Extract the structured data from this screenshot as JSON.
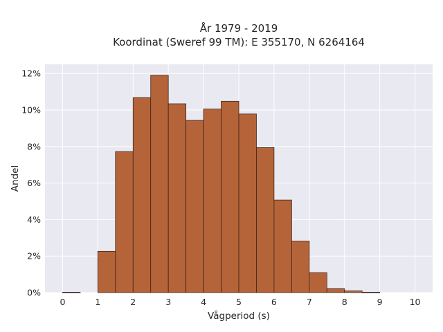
{
  "chart_data": {
    "type": "bar",
    "title_lines": [
      "År 1979 - 2019",
      "Koordinat (Sweref 99 TM): E 355170, N 6264164"
    ],
    "xlabel": "Vågperiod (s)",
    "ylabel": "Andel",
    "xlim": [
      -0.5,
      10.5
    ],
    "ylim": [
      0,
      0.125
    ],
    "xticks": [
      0,
      1,
      2,
      3,
      4,
      5,
      6,
      7,
      8,
      9,
      10
    ],
    "xtick_labels": [
      "0",
      "1",
      "2",
      "3",
      "4",
      "5",
      "6",
      "7",
      "8",
      "9",
      "10"
    ],
    "yticks": [
      0,
      0.02,
      0.04,
      0.06,
      0.08,
      0.1,
      0.12
    ],
    "ytick_labels": [
      "0%",
      "2%",
      "4%",
      "6%",
      "8%",
      "10%",
      "12%"
    ],
    "grid": true,
    "bin_width": 0.5,
    "bins": [
      {
        "x0": 0.0,
        "x1": 0.5,
        "value": 0.0002
      },
      {
        "x0": 0.5,
        "x1": 1.0,
        "value": 0
      },
      {
        "x0": 1.0,
        "x1": 1.5,
        "value": 0.0226
      },
      {
        "x0": 1.5,
        "x1": 2.0,
        "value": 0.0772
      },
      {
        "x0": 2.0,
        "x1": 2.5,
        "value": 0.1068
      },
      {
        "x0": 2.5,
        "x1": 3.0,
        "value": 0.119
      },
      {
        "x0": 3.0,
        "x1": 3.5,
        "value": 0.1034
      },
      {
        "x0": 3.5,
        "x1": 4.0,
        "value": 0.0943
      },
      {
        "x0": 4.0,
        "x1": 4.5,
        "value": 0.1005
      },
      {
        "x0": 4.5,
        "x1": 5.0,
        "value": 0.1048
      },
      {
        "x0": 5.0,
        "x1": 5.5,
        "value": 0.0978
      },
      {
        "x0": 5.5,
        "x1": 6.0,
        "value": 0.0794
      },
      {
        "x0": 6.0,
        "x1": 6.5,
        "value": 0.0507
      },
      {
        "x0": 6.5,
        "x1": 7.0,
        "value": 0.0282
      },
      {
        "x0": 7.0,
        "x1": 7.5,
        "value": 0.0109
      },
      {
        "x0": 7.5,
        "x1": 8.0,
        "value": 0.0021
      },
      {
        "x0": 8.0,
        "x1": 8.5,
        "value": 0.0009
      },
      {
        "x0": 8.5,
        "x1": 9.0,
        "value": 0.0002
      }
    ],
    "colors": {
      "bar_fill": "#b5643a",
      "bar_edge": "#3b2418",
      "plot_background": "#e9e9f1",
      "grid": "#ffffff"
    }
  }
}
